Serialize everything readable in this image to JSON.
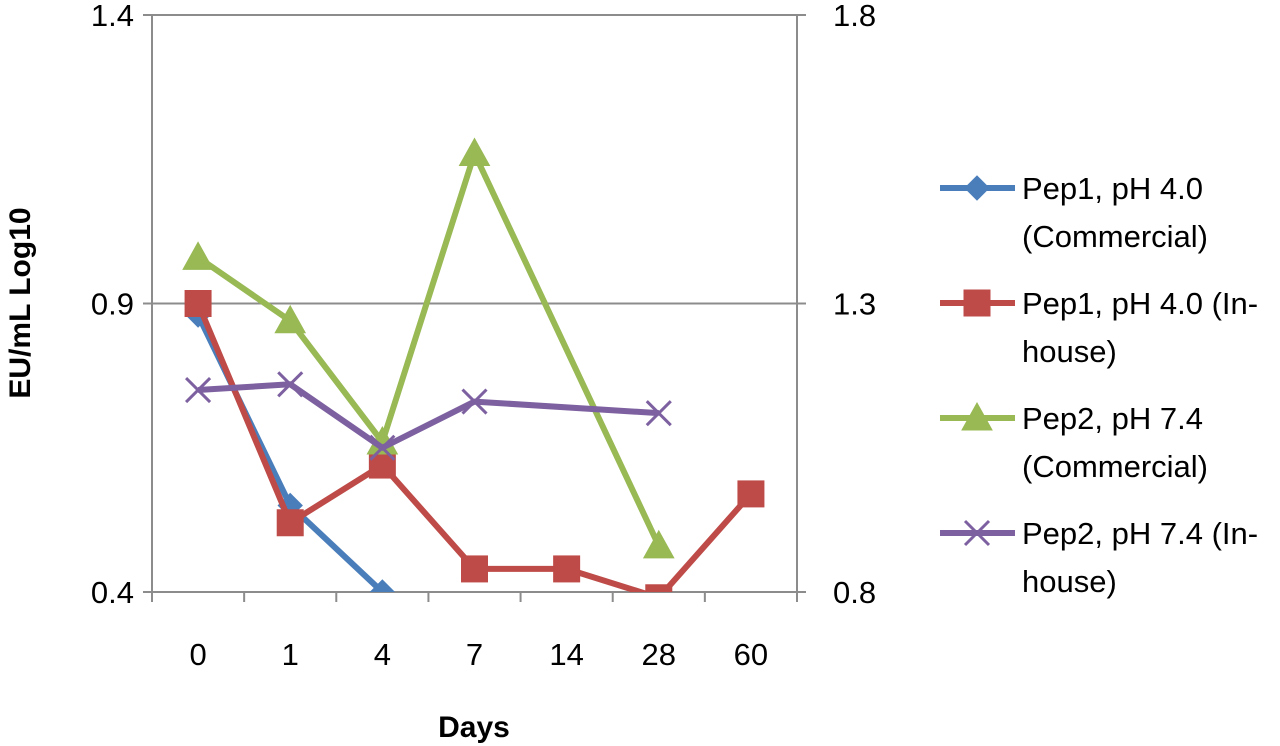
{
  "chart_data": {
    "type": "line",
    "categories": [
      "0",
      "1",
      "4",
      "7",
      "14",
      "28",
      "60"
    ],
    "xlabel": "Days",
    "ylabel": "EU/mL Log10",
    "ylim": [
      0.4,
      1.4
    ],
    "yticks": [
      "0.4",
      "0.9",
      "1.4"
    ],
    "y2lim": [
      0.8,
      1.8
    ],
    "y2ticks": [
      "0.8",
      "1.3",
      "1.8"
    ],
    "grid": "horizontal major gridlines",
    "legend_position": "right",
    "series": [
      {
        "name_lines": [
          "Pep1, pH 4.0",
          "(Commercial)"
        ],
        "color": "#4a7ebb",
        "marker": "diamond",
        "values": [
          0.88,
          0.55,
          0.4,
          null,
          null,
          null,
          null
        ]
      },
      {
        "name_lines": [
          "Pep1, pH 4.0 (In-",
          "house)"
        ],
        "color": "#be4b48",
        "marker": "square",
        "values": [
          0.9,
          0.52,
          0.62,
          0.44,
          0.44,
          0.39,
          0.57
        ]
      },
      {
        "name_lines": [
          "Pep2, pH 7.4",
          "(Commercial)"
        ],
        "color": "#98b954",
        "marker": "triangle",
        "values": [
          0.98,
          0.87,
          0.66,
          1.16,
          null,
          0.48,
          null
        ]
      },
      {
        "name_lines": [
          "Pep2, pH 7.4 (In-",
          "house)"
        ],
        "color": "#7d60a0",
        "marker": "x",
        "values": [
          0.75,
          0.76,
          0.65,
          0.73,
          null,
          0.71,
          null
        ]
      }
    ]
  }
}
